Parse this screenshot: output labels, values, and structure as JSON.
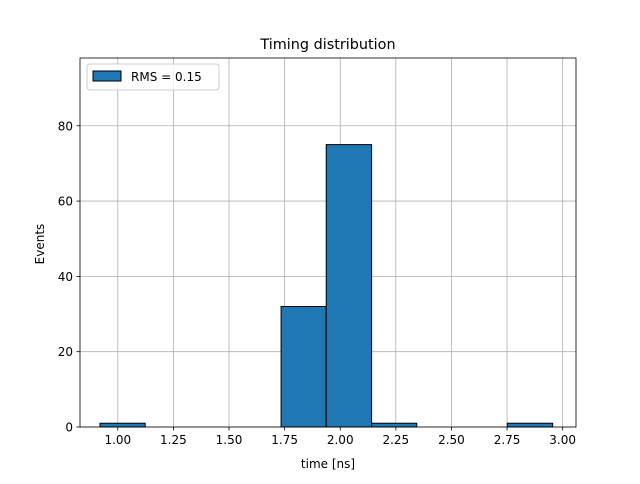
{
  "chart_data": {
    "type": "bar",
    "title": "Timing distribution",
    "xlabel": "time [ns]",
    "ylabel": "Events",
    "xlim": [
      0.83,
      3.06
    ],
    "ylim": [
      0,
      98
    ],
    "x_ticks": [
      1.0,
      1.25,
      1.5,
      1.75,
      2.0,
      2.25,
      2.5,
      2.75,
      3.0
    ],
    "x_tick_labels": [
      "1.00",
      "1.25",
      "1.50",
      "1.75",
      "2.00",
      "2.25",
      "2.50",
      "2.75",
      "3.00"
    ],
    "y_ticks": [
      0,
      20,
      40,
      60,
      80
    ],
    "y_tick_labels": [
      "0",
      "20",
      "40",
      "60",
      "80"
    ],
    "grid": true,
    "legend": {
      "position": "top-left",
      "entries": [
        "RMS = 0.15"
      ]
    },
    "bins": [
      {
        "x0": 0.92,
        "x1": 1.123,
        "count": 1
      },
      {
        "x0": 1.123,
        "x1": 1.327,
        "count": 0
      },
      {
        "x0": 1.327,
        "x1": 1.53,
        "count": 0
      },
      {
        "x0": 1.53,
        "x1": 1.734,
        "count": 0
      },
      {
        "x0": 1.734,
        "x1": 1.937,
        "count": 32
      },
      {
        "x0": 1.937,
        "x1": 2.141,
        "count": 75
      },
      {
        "x0": 2.141,
        "x1": 2.344,
        "count": 1
      },
      {
        "x0": 2.344,
        "x1": 2.548,
        "count": 0
      },
      {
        "x0": 2.548,
        "x1": 2.751,
        "count": 0
      },
      {
        "x0": 2.751,
        "x1": 2.955,
        "count": 1
      }
    ],
    "colors": {
      "bar_fill": "#1f77b4",
      "bar_edge": "#000000",
      "grid": "#b0b0b0"
    }
  }
}
